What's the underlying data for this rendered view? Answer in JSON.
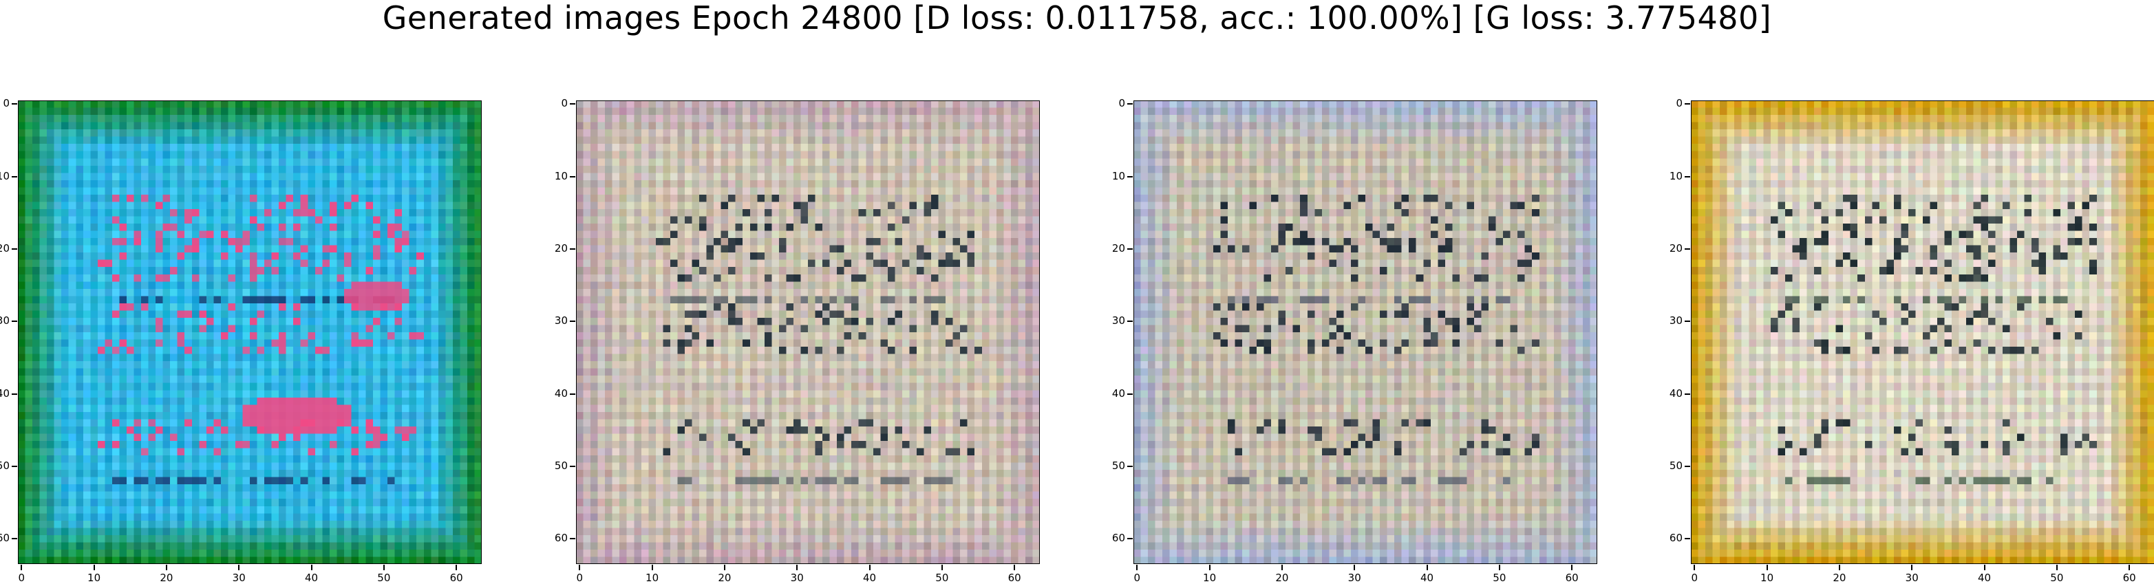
{
  "figure": {
    "title": "Generated images Epoch 24800 [D loss: 0.011758, acc.: 100.00%] [G loss: 3.775480]"
  },
  "panels": [
    {
      "name": "generated-image-1",
      "palette": "green-cyan-blue",
      "colors": {
        "border": "#178a32",
        "base": "#33b9e4",
        "mark": "#f04a86",
        "line": "#12245e"
      }
    },
    {
      "name": "generated-image-2",
      "palette": "beige-gray",
      "colors": {
        "border": "#bfa9b2",
        "base": "#cdc3b4",
        "mark": "#22303a",
        "line": "#4a5560"
      }
    },
    {
      "name": "generated-image-3",
      "palette": "beige-gray-blue",
      "colors": {
        "border": "#a8b4d0",
        "base": "#c8c0b0",
        "mark": "#1e2a36",
        "line": "#4a5468"
      }
    },
    {
      "name": "generated-image-4",
      "palette": "mustard-white",
      "colors": {
        "border": "#d2a414",
        "base": "#dcd6c4",
        "mark": "#1c2a30",
        "line": "#2f4a3a"
      }
    }
  ],
  "axes": {
    "ticks": [
      "0",
      "10",
      "20",
      "30",
      "40",
      "50",
      "60"
    ],
    "tick_values": [
      0,
      10,
      20,
      30,
      40,
      50,
      60
    ],
    "pixel_range": [
      -0.5,
      63.5
    ]
  }
}
